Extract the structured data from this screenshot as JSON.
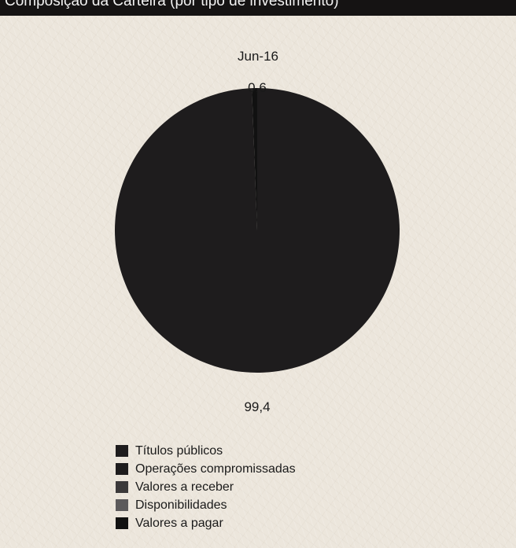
{
  "header": {
    "title": "Composição da Carteira (por tipo de investimento)"
  },
  "chart_data": {
    "type": "pie",
    "title": "Composição da Carteira (por tipo de investimento)",
    "period": "Jun-16",
    "slices": [
      {
        "label": "Títulos públicos",
        "value": 0.0,
        "color": "#1e1c1d"
      },
      {
        "label": "Operações compromissadas",
        "value": 99.4,
        "color": "#1e1c1d"
      },
      {
        "label": "Valores a receber",
        "value": 0.0,
        "color": "#3b393a"
      },
      {
        "label": "Disponibilidades",
        "value": 0.0,
        "color": "#5c5a5b"
      },
      {
        "label": "Valores a pagar",
        "value": 0.6,
        "color": "#111111"
      }
    ],
    "data_labels": [
      "0,6",
      "99,4"
    ],
    "legend_position": "bottom"
  }
}
